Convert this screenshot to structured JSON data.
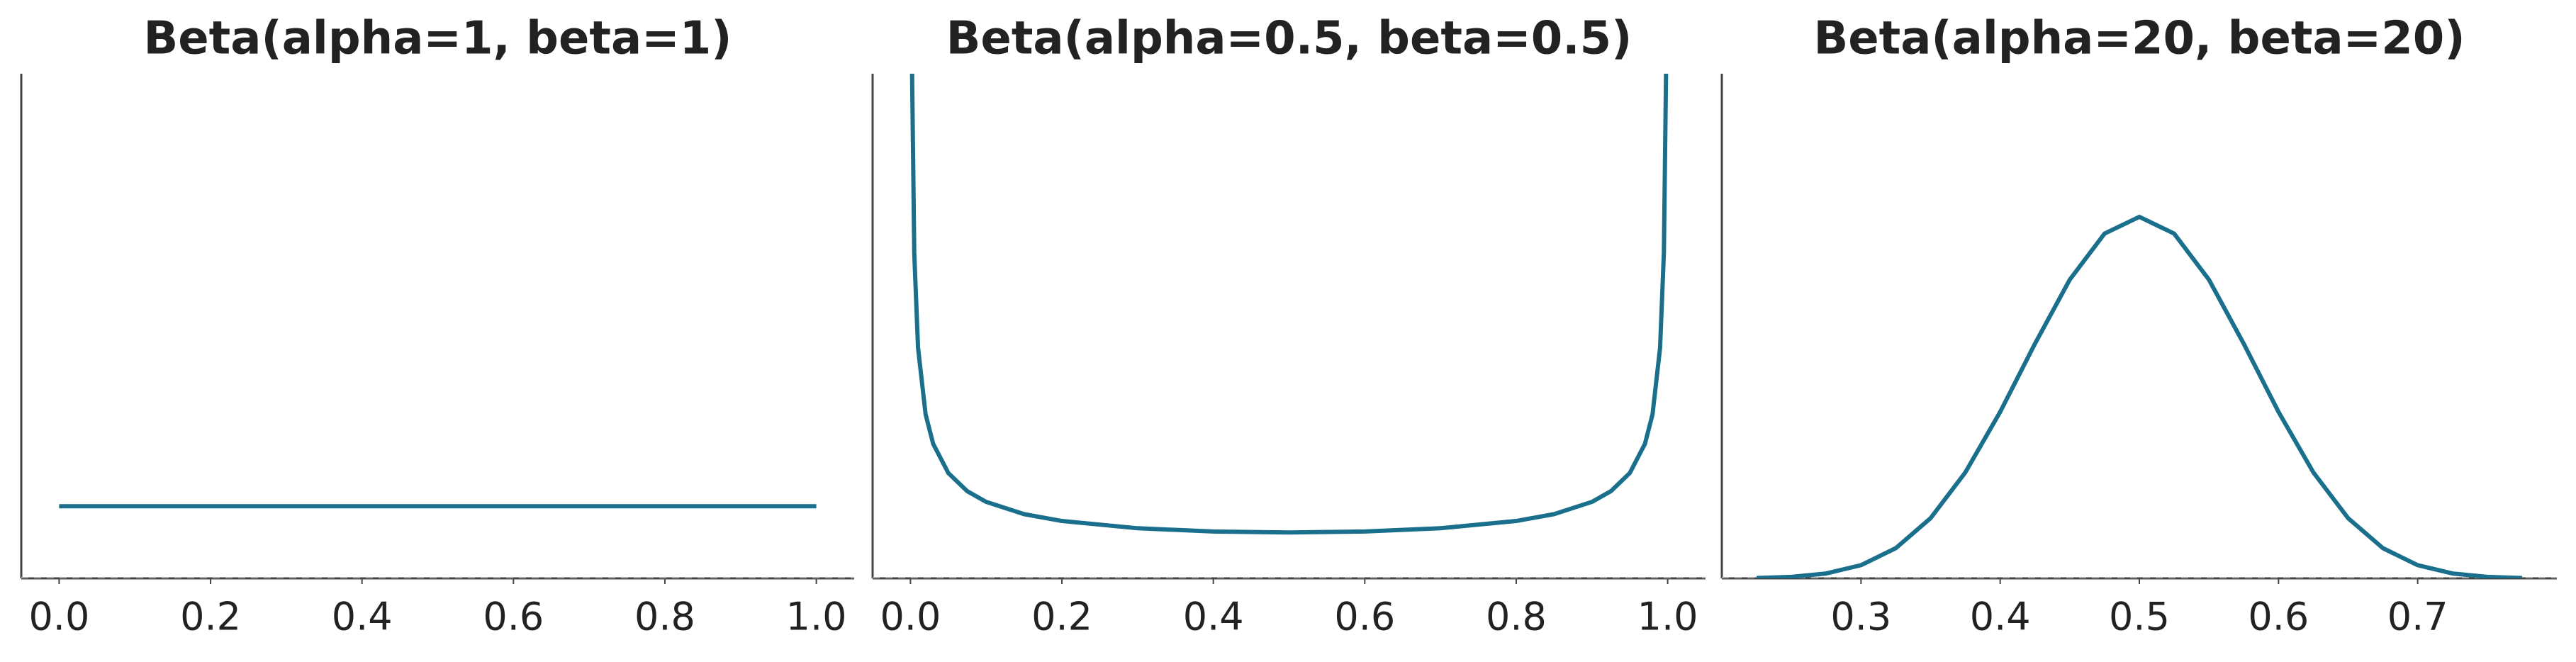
{
  "chart_data": [
    {
      "type": "line",
      "title": "Beta(alpha=1, beta=1)",
      "color": "#1a6f8c",
      "x": [
        0,
        1
      ],
      "values": [
        1,
        1
      ],
      "xlim": [
        -0.05,
        1.05
      ],
      "ylim": [
        0,
        7
      ],
      "xticks": [
        {
          "value": 0,
          "label": "0.0"
        },
        0.2,
        0.4,
        0.6,
        0.8,
        {
          "value": 1,
          "label": "1.0"
        }
      ]
    },
    {
      "type": "line",
      "title": "Beta(alpha=0.5, beta=0.5)",
      "color": "#1a6f8c",
      "x": [
        0.001,
        0.002,
        0.005,
        0.01,
        0.02,
        0.03,
        0.05,
        0.075,
        0.1,
        0.15,
        0.2,
        0.3,
        0.4,
        0.5,
        0.6,
        0.7,
        0.8,
        0.85,
        0.9,
        0.925,
        0.95,
        0.97,
        0.98,
        0.99,
        0.995,
        0.998,
        0.999
      ],
      "values": [
        10.07,
        7.12,
        4.513,
        3.199,
        2.274,
        1.866,
        1.461,
        1.209,
        1.061,
        0.891,
        0.796,
        0.695,
        0.65,
        0.637,
        0.65,
        0.695,
        0.796,
        0.891,
        1.061,
        1.209,
        1.461,
        1.866,
        2.274,
        3.199,
        4.513,
        7.12,
        10.07
      ],
      "xlim": [
        -0.05,
        1.05
      ],
      "ylim": [
        0,
        7
      ],
      "xticks": [
        {
          "value": 0,
          "label": "0.0"
        },
        0.2,
        0.4,
        0.6,
        0.8,
        {
          "value": 1,
          "label": "1.0"
        }
      ]
    },
    {
      "type": "line",
      "title": "Beta(alpha=20, beta=20)",
      "color": "#1a6f8c",
      "x": [
        0.225,
        0.25,
        0.275,
        0.3,
        0.325,
        0.35,
        0.375,
        0.4,
        0.425,
        0.45,
        0.475,
        0.5,
        0.525,
        0.55,
        0.575,
        0.6,
        0.625,
        0.65,
        0.675,
        0.7,
        0.725,
        0.75,
        0.775
      ],
      "values": [
        0.005,
        0.021,
        0.068,
        0.183,
        0.419,
        0.835,
        1.471,
        2.309,
        3.255,
        4.143,
        4.782,
        5.015,
        4.782,
        4.143,
        3.255,
        2.309,
        1.471,
        0.835,
        0.419,
        0.183,
        0.068,
        0.021,
        0.005
      ],
      "xlim": [
        0.2,
        0.8
      ],
      "ylim": [
        0,
        7
      ],
      "xticks": [
        0.3,
        0.4,
        0.5,
        0.6,
        0.7
      ]
    }
  ]
}
